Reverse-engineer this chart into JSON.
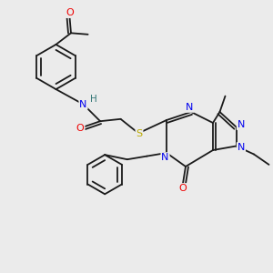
{
  "background_color": "#ebebeb",
  "bond_color": "#1a1a1a",
  "atom_colors": {
    "N": "#0000ee",
    "O": "#ee0000",
    "S": "#bbaa00",
    "H": "#337777",
    "C": "#1a1a1a"
  },
  "figsize": [
    3.0,
    3.0
  ],
  "dpi": 100
}
